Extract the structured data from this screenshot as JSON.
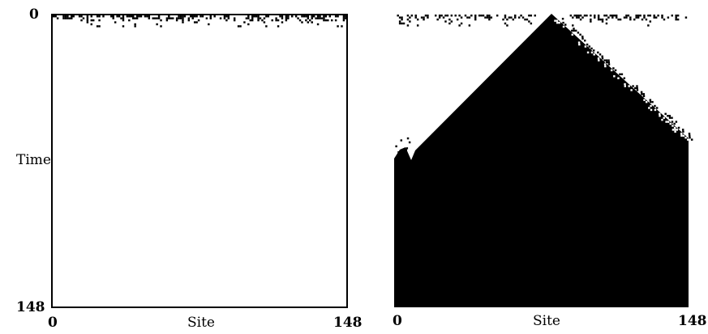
{
  "left_panel": {
    "y_axis": {
      "label": "Time",
      "min_label": "0",
      "max_label": "148"
    },
    "x_axis": {
      "label": "Site",
      "min_label": "0",
      "max_label": "148"
    }
  },
  "right_panel": {
    "x_axis": {
      "label": "Site",
      "min_label": "0",
      "max_label": "148"
    }
  },
  "colors": {
    "background": "#ffffff",
    "ink": "#000000"
  }
}
